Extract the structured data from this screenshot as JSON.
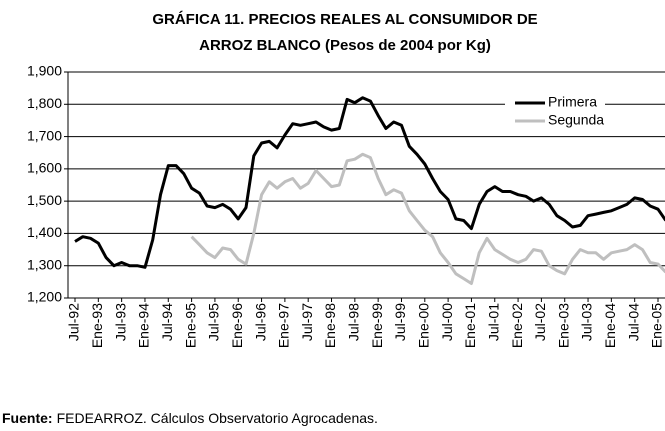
{
  "chart_data": {
    "type": "line",
    "title": [
      "GRÁFICA 11. PRECIOS REALES AL CONSUMIDOR DE",
      "ARROZ BLANCO (Pesos de 2004 por Kg)"
    ],
    "categories": [
      "Jul-92",
      null,
      null,
      "Ene-93",
      null,
      null,
      "Jul-93",
      null,
      null,
      "Ene-94",
      null,
      null,
      "Jul-94",
      null,
      null,
      "Ene-95",
      null,
      null,
      "Jul-95",
      null,
      null,
      "Ene-96",
      null,
      null,
      "Jul-96",
      null,
      null,
      "Ene-97",
      null,
      null,
      "Jul-97",
      null,
      null,
      "Ene-98",
      null,
      null,
      "Jul-98",
      null,
      null,
      "Ene-99",
      null,
      null,
      "Jul-99",
      null,
      null,
      "Ene-00",
      null,
      null,
      "Jul-00",
      null,
      null,
      "Ene-01",
      null,
      null,
      "Jul-01",
      null,
      null,
      "Ene-02",
      null,
      null,
      "Jul-02",
      null,
      null,
      "Ene-03",
      null,
      null,
      "Jul-03",
      null,
      null,
      "Ene-04",
      null,
      null,
      "Jul-04",
      null,
      null,
      "Ene-05",
      null
    ],
    "series": [
      {
        "name": "Primera",
        "color": "#000000",
        "values": [
          1375,
          1390,
          1385,
          1370,
          1325,
          1300,
          1310,
          1300,
          1300,
          1295,
          1380,
          1520,
          1610,
          1610,
          1585,
          1540,
          1525,
          1485,
          1480,
          1490,
          1475,
          1445,
          1480,
          1640,
          1680,
          1685,
          1665,
          1705,
          1740,
          1735,
          1740,
          1745,
          1730,
          1720,
          1725,
          1815,
          1805,
          1820,
          1810,
          1765,
          1725,
          1745,
          1735,
          1670,
          1645,
          1615,
          1570,
          1530,
          1505,
          1445,
          1440,
          1415,
          1490,
          1530,
          1545,
          1530,
          1530,
          1520,
          1515,
          1500,
          1510,
          1490,
          1455,
          1440,
          1420,
          1425,
          1455,
          1460,
          1465,
          1470,
          1480,
          1490,
          1510,
          1505,
          1485,
          1475,
          1440
        ]
      },
      {
        "name": "Segunda",
        "color": "#bfbfbf",
        "values": [
          null,
          null,
          null,
          null,
          null,
          null,
          null,
          null,
          null,
          null,
          null,
          null,
          null,
          null,
          null,
          1390,
          1365,
          1340,
          1325,
          1355,
          1350,
          1320,
          1305,
          1400,
          1520,
          1560,
          1540,
          1560,
          1570,
          1540,
          1555,
          1595,
          1570,
          1545,
          1550,
          1625,
          1630,
          1645,
          1635,
          1570,
          1520,
          1535,
          1525,
          1470,
          1440,
          1410,
          1390,
          1340,
          1310,
          1275,
          1260,
          1245,
          1340,
          1385,
          1350,
          1335,
          1320,
          1310,
          1320,
          1350,
          1345,
          1300,
          1285,
          1275,
          1320,
          1350,
          1340,
          1340,
          1320,
          1340,
          1345,
          1350,
          1365,
          1350,
          1310,
          1305,
          1280
        ]
      }
    ],
    "ylim": [
      1200,
      1900
    ],
    "yticks": [
      {
        "value": 1200,
        "label": "1,200"
      },
      {
        "value": 1300,
        "label": "1,300"
      },
      {
        "value": 1400,
        "label": "1,400"
      },
      {
        "value": 1500,
        "label": "1,500"
      },
      {
        "value": 1600,
        "label": "1,600"
      },
      {
        "value": 1700,
        "label": "1,700"
      },
      {
        "value": 1800,
        "label": "1,800"
      },
      {
        "value": 1900,
        "label": "1,900"
      }
    ],
    "grid": true,
    "legend": "top-right",
    "source": {
      "label": "Fuente:",
      "text": "FEDEARROZ. Cálculos Observatorio Agrocadenas."
    }
  }
}
